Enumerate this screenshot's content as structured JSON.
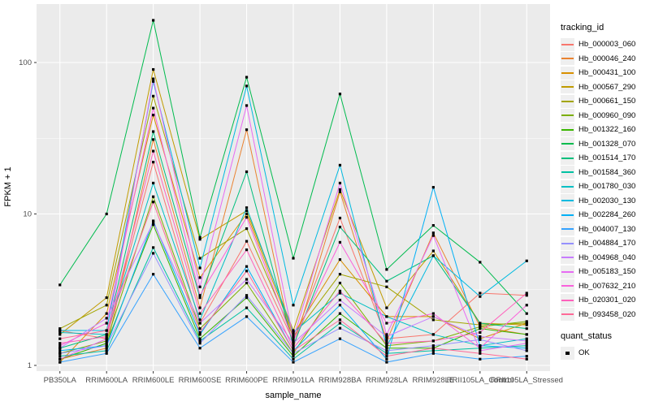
{
  "chart_data": {
    "type": "line",
    "title": "",
    "xlabel": "sample_name",
    "ylabel": "FPKM + 1",
    "y_scale": "log10",
    "y_ticks": [
      1,
      10,
      100
    ],
    "y_minor_ticks": [
      3.162,
      31.62
    ],
    "ylim": [
      0.9,
      243
    ],
    "grid": true,
    "panel_bg": "#EBEBEB",
    "grid_color": "#FFFFFF",
    "point_color": "#000000",
    "axis_text_color": "#4D4D4D",
    "legend_position": "right",
    "categories": [
      "PB350LA",
      "RRIM600LA",
      "RRIM600LE",
      "RRIM600SE",
      "RRIM600PE",
      "RRIM901LA",
      "RRIM928BA",
      "RRIM928LA",
      "RRIM928LE",
      "RRII105LA_Control",
      "RRII105LA_Stressed"
    ],
    "legend": {
      "tracking_title": "tracking_id",
      "quant_title": "quant_status",
      "quant_value": "OK"
    },
    "series": [
      {
        "id": "Hb_000003_060",
        "color": "#F8766D",
        "values": [
          1.7,
          1.5,
          22,
          1.9,
          6.6,
          1.45,
          9.4,
          1.5,
          1.6,
          3.0,
          2.9
        ]
      },
      {
        "id": "Hb_000046_240",
        "color": "#EA8331",
        "values": [
          1.1,
          1.3,
          31,
          2.4,
          36,
          1.3,
          14,
          1.45,
          7.5,
          1.8,
          1.6
        ]
      },
      {
        "id": "Hb_000431_100",
        "color": "#D89000",
        "values": [
          1.05,
          2.2,
          45,
          3.8,
          10,
          1.6,
          5.0,
          2.1,
          2.1,
          1.5,
          1.9
        ]
      },
      {
        "id": "Hb_000567_290",
        "color": "#C09B00",
        "values": [
          1.6,
          2.8,
          90,
          6.8,
          10.5,
          1.7,
          14.5,
          2.4,
          5.7,
          1.9,
          1.85
        ]
      },
      {
        "id": "Hb_000661_150",
        "color": "#A3A500",
        "values": [
          1.75,
          2.5,
          60,
          5.1,
          8.0,
          1.55,
          4.0,
          3.3,
          2.0,
          1.85,
          1.9
        ]
      },
      {
        "id": "Hb_000960_090",
        "color": "#7CAE00",
        "values": [
          1.2,
          1.45,
          13,
          1.75,
          3.5,
          1.2,
          3.5,
          1.35,
          1.45,
          1.8,
          1.95
        ]
      },
      {
        "id": "Hb_001322_160",
        "color": "#39B600",
        "values": [
          1.1,
          1.4,
          8.5,
          1.5,
          2.8,
          1.15,
          2.2,
          1.3,
          1.3,
          1.75,
          1.6
        ]
      },
      {
        "id": "Hb_001328_070",
        "color": "#00BB4E",
        "values": [
          3.4,
          10,
          190,
          7.0,
          80,
          5.1,
          62,
          4.3,
          8.4,
          4.8,
          2.2
        ]
      },
      {
        "id": "Hb_001514_170",
        "color": "#00BF7D",
        "values": [
          1.3,
          1.6,
          35,
          2.8,
          19,
          1.35,
          8.2,
          3.6,
          5.3,
          1.9,
          1.75
        ]
      },
      {
        "id": "Hb_001584_360",
        "color": "#00C1A3",
        "values": [
          1.15,
          1.25,
          6.0,
          1.45,
          2.4,
          1.1,
          1.9,
          1.2,
          1.25,
          1.3,
          1.35
        ]
      },
      {
        "id": "Hb_001780_030",
        "color": "#00BFC4",
        "values": [
          1.65,
          1.6,
          16,
          2.0,
          11,
          1.65,
          3.0,
          2.1,
          1.6,
          1.35,
          1.5
        ]
      },
      {
        "id": "Hb_002030_130",
        "color": "#00BAE0",
        "values": [
          1.7,
          1.7,
          75,
          4.4,
          70,
          2.5,
          21,
          1.33,
          5.3,
          2.85,
          4.9
        ]
      },
      {
        "id": "Hb_002284_260",
        "color": "#00B0F6",
        "values": [
          1.25,
          1.35,
          9.0,
          1.6,
          4.5,
          1.25,
          2.5,
          1.1,
          15,
          1.35,
          1.3
        ]
      },
      {
        "id": "Hb_004007_130",
        "color": "#35A2FF",
        "values": [
          1.05,
          1.2,
          4.0,
          1.3,
          2.1,
          1.05,
          1.5,
          1.05,
          1.2,
          1.1,
          1.15
        ]
      },
      {
        "id": "Hb_004884_170",
        "color": "#9590FF",
        "values": [
          1.2,
          1.35,
          5.5,
          1.4,
          2.9,
          1.2,
          1.76,
          1.25,
          1.35,
          1.48,
          1.25
        ]
      },
      {
        "id": "Hb_004968_040",
        "color": "#C77CFF",
        "values": [
          1.3,
          2.05,
          8.8,
          1.9,
          3.7,
          1.4,
          2.7,
          1.55,
          2.1,
          1.55,
          1.45
        ]
      },
      {
        "id": "Hb_005183_150",
        "color": "#E76BF3",
        "values": [
          1.1,
          1.5,
          78,
          3.3,
          52,
          1.5,
          16,
          1.6,
          7.2,
          1.25,
          1.4
        ]
      },
      {
        "id": "Hb_007632_210",
        "color": "#FA62DB",
        "values": [
          1.35,
          1.9,
          50,
          2.9,
          9.5,
          1.45,
          6.5,
          1.9,
          2.2,
          1.3,
          2.5
        ]
      },
      {
        "id": "Hb_020301_020",
        "color": "#FF62BC",
        "values": [
          1.4,
          1.55,
          26,
          2.2,
          5.8,
          1.3,
          3.1,
          1.4,
          1.45,
          1.65,
          3.0
        ]
      },
      {
        "id": "Hb_093458_020",
        "color": "#FF6A98",
        "values": [
          1.5,
          1.7,
          12,
          1.65,
          4.2,
          1.25,
          2.0,
          1.15,
          1.3,
          1.2,
          1.1
        ]
      }
    ]
  }
}
